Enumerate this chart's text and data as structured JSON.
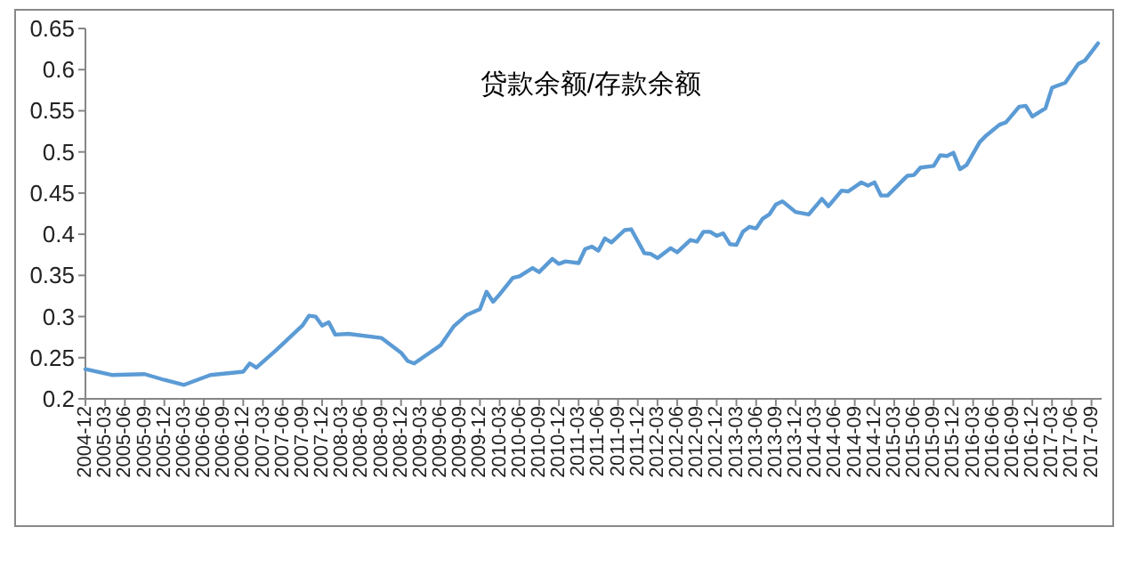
{
  "chart_data": {
    "type": "line",
    "title": "贷款余额/存款余额",
    "x": [
      "2004-12",
      "2005-04",
      "2005-09",
      "2005-12",
      "2006-03",
      "2006-07",
      "2006-12",
      "2007-01",
      "2007-02",
      "2007-05",
      "2007-09",
      "2007-10",
      "2007-11",
      "2007-12",
      "2008-01",
      "2008-02",
      "2008-04",
      "2008-09",
      "2008-12",
      "2009-01",
      "2009-02",
      "2009-06",
      "2009-08",
      "2009-10",
      "2009-12",
      "2010-01",
      "2010-02",
      "2010-03",
      "2010-05",
      "2010-06",
      "2010-08",
      "2010-09",
      "2010-11",
      "2010-12",
      "2011-01",
      "2011-03",
      "2011-04",
      "2011-05",
      "2011-06",
      "2011-07",
      "2011-08",
      "2011-10",
      "2011-11",
      "2012-01",
      "2012-02",
      "2012-03",
      "2012-05",
      "2012-06",
      "2012-08",
      "2012-09",
      "2012-10",
      "2012-11",
      "2012-12",
      "2013-01",
      "2013-02",
      "2013-03",
      "2013-04",
      "2013-05",
      "2013-06",
      "2013-07",
      "2013-08",
      "2013-09",
      "2013-10",
      "2013-12",
      "2014-02",
      "2014-04",
      "2014-05",
      "2014-07",
      "2014-08",
      "2014-10",
      "2014-11",
      "2014-12",
      "2015-01",
      "2015-02",
      "2015-05",
      "2015-06",
      "2015-07",
      "2015-09",
      "2015-10",
      "2015-11",
      "2015-12",
      "2016-01",
      "2016-02",
      "2016-04",
      "2016-05",
      "2016-07",
      "2016-08",
      "2016-10",
      "2016-11",
      "2016-12",
      "2017-02",
      "2017-03",
      "2017-05",
      "2017-07",
      "2017-08",
      "2017-10"
    ],
    "series": [
      {
        "color": "#5b9bd5",
        "values": [
          0.236,
          0.229,
          0.23,
          0.223,
          0.217,
          0.229,
          0.233,
          0.243,
          0.238,
          0.259,
          0.289,
          0.301,
          0.3,
          0.289,
          0.293,
          0.278,
          0.279,
          0.274,
          0.256,
          0.246,
          0.243,
          0.265,
          0.288,
          0.302,
          0.309,
          0.33,
          0.318,
          0.327,
          0.347,
          0.349,
          0.359,
          0.354,
          0.37,
          0.364,
          0.367,
          0.365,
          0.382,
          0.385,
          0.38,
          0.395,
          0.39,
          0.405,
          0.406,
          0.377,
          0.376,
          0.371,
          0.383,
          0.378,
          0.393,
          0.391,
          0.403,
          0.403,
          0.398,
          0.401,
          0.388,
          0.387,
          0.403,
          0.409,
          0.407,
          0.419,
          0.424,
          0.436,
          0.44,
          0.427,
          0.424,
          0.443,
          0.434,
          0.453,
          0.452,
          0.463,
          0.459,
          0.463,
          0.447,
          0.447,
          0.471,
          0.472,
          0.481,
          0.483,
          0.496,
          0.495,
          0.499,
          0.479,
          0.484,
          0.512,
          0.52,
          0.533,
          0.536,
          0.555,
          0.556,
          0.543,
          0.553,
          0.578,
          0.584,
          0.607,
          0.611,
          0.632
        ]
      }
    ],
    "xlim": [
      "2004-12",
      "2017-10"
    ],
    "xticks": [
      "2004-12",
      "2005-03",
      "2005-06",
      "2005-09",
      "2005-12",
      "2006-03",
      "2006-06",
      "2006-09",
      "2006-12",
      "2007-03",
      "2007-06",
      "2007-09",
      "2007-12",
      "2008-03",
      "2008-06",
      "2008-09",
      "2008-12",
      "2009-03",
      "2009-06",
      "2009-09",
      "2009-12",
      "2010-03",
      "2010-06",
      "2010-09",
      "2010-12",
      "2011-03",
      "2011-06",
      "2011-09",
      "2011-12",
      "2012-03",
      "2012-06",
      "2012-09",
      "2012-12",
      "2013-03",
      "2013-06",
      "2013-09",
      "2013-12",
      "2014-03",
      "2014-06",
      "2014-09",
      "2014-12",
      "2015-03",
      "2015-06",
      "2015-09",
      "2015-12",
      "2016-03",
      "2016-06",
      "2016-09",
      "2016-12",
      "2017-03",
      "2017-06",
      "2017-09"
    ],
    "ylim": [
      0.2,
      0.65
    ],
    "yticks": [
      0.2,
      0.25,
      0.3,
      0.35,
      0.4,
      0.45,
      0.5,
      0.55,
      0.6,
      0.65
    ],
    "grid": false,
    "marker": "none",
    "line_style": "solid"
  }
}
